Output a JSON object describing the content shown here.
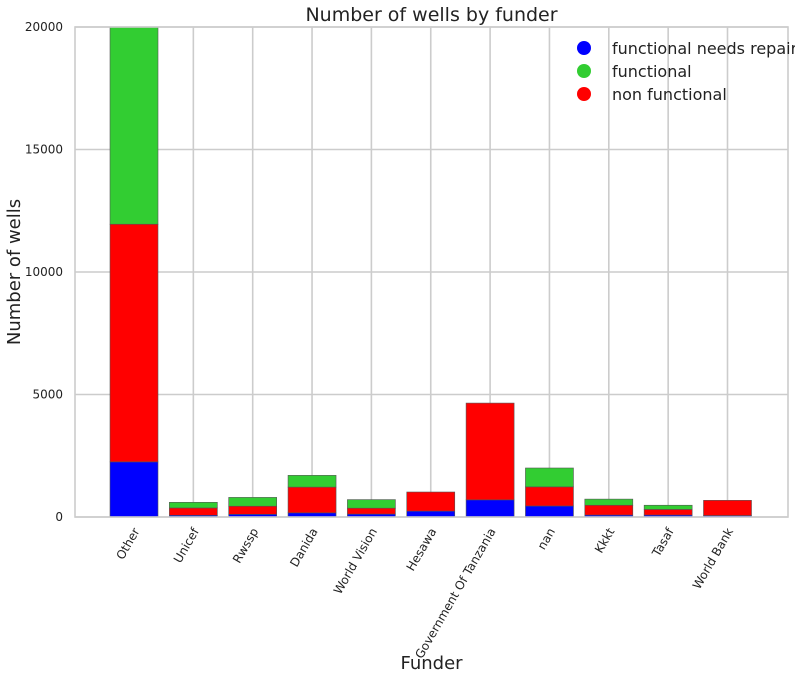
{
  "chart_data": {
    "type": "bar",
    "stacked": true,
    "title": "Number of wells by funder",
    "xlabel": "Funder",
    "ylabel": "Number of wells",
    "ylim": [
      0,
      20000
    ],
    "yticks": [
      0,
      5000,
      10000,
      15000,
      20000
    ],
    "grid": true,
    "legend_position": "top-right",
    "categories": [
      "Other",
      "Unicef",
      "Rwssp",
      "Danida",
      "World Vision",
      "Hesawa",
      "Government Of Tanzania",
      "nan",
      "Kkkt",
      "Tasaf",
      "World Bank"
    ],
    "series": [
      {
        "name": "functional needs repair",
        "color": "#0000ff",
        "values": [
          2250,
          70,
          110,
          170,
          120,
          240,
          700,
          450,
          80,
          80,
          60
        ]
      },
      {
        "name": "non functional",
        "color": "#ff0000",
        "values": [
          9700,
          300,
          330,
          1050,
          240,
          780,
          3950,
          780,
          400,
          230,
          620
        ]
      },
      {
        "name": "functional",
        "color": "#32cd32",
        "values": [
          8050,
          230,
          360,
          480,
          350,
          0,
          0,
          770,
          250,
          170,
          0
        ]
      }
    ],
    "legend": [
      {
        "name": "functional needs repair",
        "color": "#0000ff"
      },
      {
        "name": "functional",
        "color": "#32cd32"
      },
      {
        "name": "non functional",
        "color": "#ff0000"
      }
    ]
  }
}
